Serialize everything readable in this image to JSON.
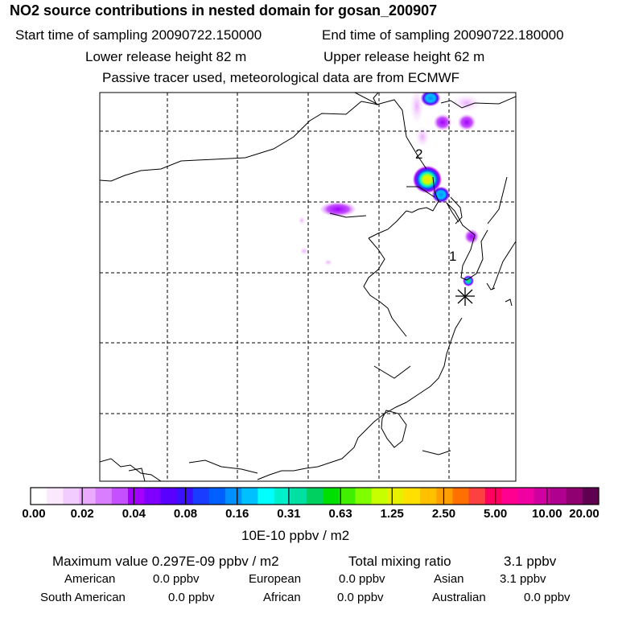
{
  "header": {
    "title": "NO2 source contributions in nested domain for gosan_200907",
    "start_time": "Start time of sampling 20090722.150000",
    "end_time": "End time of sampling 20090722.180000",
    "lower_height": "Lower release height   82 m",
    "upper_height": "Upper release height   62 m",
    "tracer_note": "Passive tracer used, meteorological data are from ECMWF"
  },
  "map": {
    "markers": [
      {
        "label": "2"
      },
      {
        "label": "1"
      }
    ],
    "receptor_symbol": "asterisk-icon"
  },
  "colorbar": {
    "colors": [
      "#ffffff",
      "#fbe8ff",
      "#f3ccff",
      "#e9aaff",
      "#d87eff",
      "#c450ff",
      "#a300ff",
      "#8000ff",
      "#5a00ff",
      "#3a10ff",
      "#1a3cff",
      "#0060ff",
      "#0090ff",
      "#00c0ff",
      "#00ffff",
      "#00f0cc",
      "#00e0a0",
      "#00d060",
      "#00e000",
      "#40f000",
      "#80ff00",
      "#c8ff00",
      "#e8f000",
      "#ffe000",
      "#ffc000",
      "#ffa000",
      "#ff7000",
      "#ff4040",
      "#ff0060",
      "#ff0090",
      "#f000a0",
      "#d000a0",
      "#b00090",
      "#900070",
      "#600050"
    ],
    "labels": [
      "0.00",
      "0.02",
      "0.04",
      "0.08",
      "0.16",
      "0.31",
      "0.63",
      "1.25",
      "2.50",
      "5.00",
      "10.00",
      "20.00"
    ],
    "units": "10E-10 ppbv / m2"
  },
  "summary": {
    "max_label": "Maximum value  0.297E-09 ppbv / m2",
    "total_label": "Total mixing ratio",
    "total_value": "3.1 ppbv",
    "regions": [
      {
        "name": "American",
        "value": "0.0 ppbv"
      },
      {
        "name": "European",
        "value": "0.0 ppbv"
      },
      {
        "name": "Asian",
        "value": "3.1 ppbv"
      },
      {
        "name": "South American",
        "value": "0.0 ppbv"
      },
      {
        "name": "African",
        "value": "0.0 ppbv"
      },
      {
        "name": "Australian",
        "value": "0.0 ppbv"
      }
    ]
  }
}
